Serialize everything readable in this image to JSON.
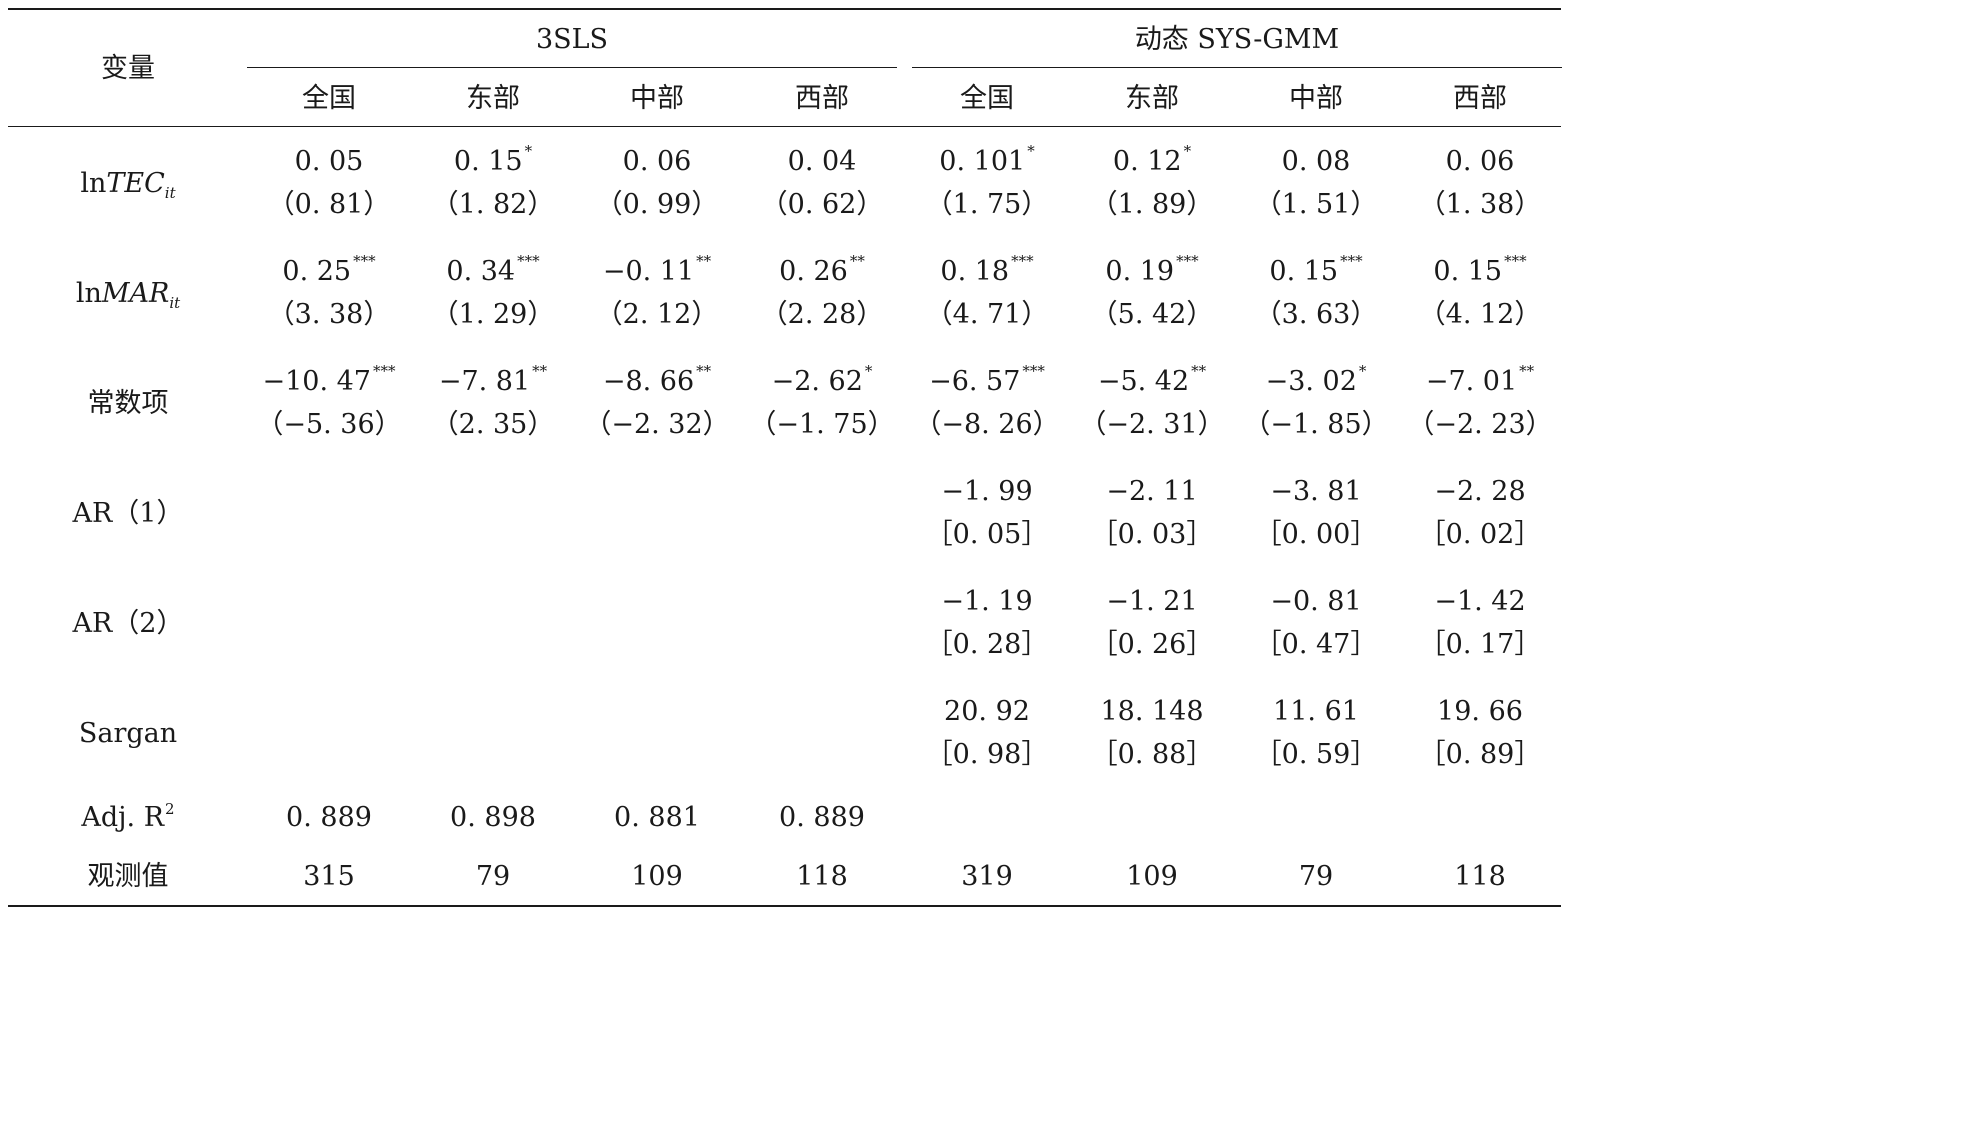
{
  "header": {
    "var_label": "变量",
    "groups": [
      {
        "label": "3SLS",
        "columns": [
          "全国",
          "东部",
          "中部",
          "西部"
        ]
      },
      {
        "label": "动态 SYS-GMM",
        "columns": [
          "全国",
          "东部",
          "中部",
          "西部"
        ]
      }
    ]
  },
  "rows": [
    {
      "label_prefix": "ln",
      "label_var": "TEC",
      "label_sub": "it",
      "top": [
        {
          "v": "0. 05",
          "s": ""
        },
        {
          "v": "0. 15",
          "s": "*"
        },
        {
          "v": "0. 06",
          "s": ""
        },
        {
          "v": "0. 04",
          "s": ""
        },
        {
          "v": "0. 101",
          "s": "*"
        },
        {
          "v": "0. 12",
          "s": "*"
        },
        {
          "v": "0. 08",
          "s": ""
        },
        {
          "v": "0. 06",
          "s": ""
        }
      ],
      "bottom": [
        "（0. 81）",
        "（1. 82）",
        "（0. 99）",
        "（0. 62）",
        "（1. 75）",
        "（1. 89）",
        "（1. 51）",
        "（1. 38）"
      ]
    },
    {
      "label_prefix": "ln",
      "label_var": "MAR",
      "label_sub": "it",
      "top": [
        {
          "v": "0. 25",
          "s": "***"
        },
        {
          "v": "0. 34",
          "s": "***"
        },
        {
          "v": "−0. 11",
          "s": "**"
        },
        {
          "v": "0. 26",
          "s": "**"
        },
        {
          "v": "0. 18",
          "s": "***"
        },
        {
          "v": "0. 19",
          "s": "***"
        },
        {
          "v": "0. 15",
          "s": "***"
        },
        {
          "v": "0. 15",
          "s": "***"
        }
      ],
      "bottom": [
        "（3. 38）",
        "（1. 29）",
        "（2. 12）",
        "（2. 28）",
        "（4. 71）",
        "（5. 42）",
        "（3. 63）",
        "（4. 12）"
      ]
    },
    {
      "label": "常数项",
      "top": [
        {
          "v": "−10. 47",
          "s": "***"
        },
        {
          "v": "−7. 81",
          "s": "**"
        },
        {
          "v": "−8. 66",
          "s": "**"
        },
        {
          "v": "−2. 62",
          "s": "*"
        },
        {
          "v": "−6. 57",
          "s": "***"
        },
        {
          "v": "−5. 42",
          "s": "**"
        },
        {
          "v": "−3. 02",
          "s": "*"
        },
        {
          "v": "−7. 01",
          "s": "**"
        }
      ],
      "bottom": [
        "（−5. 36）",
        "（2. 35）",
        "（−2. 32）",
        "（−1. 75）",
        "（−8. 26）",
        "（−2. 31）",
        "（−1. 85）",
        "（−2. 23）"
      ]
    },
    {
      "label": "AR（1）",
      "top": [
        {
          "v": "",
          "s": ""
        },
        {
          "v": "",
          "s": ""
        },
        {
          "v": "",
          "s": ""
        },
        {
          "v": "",
          "s": ""
        },
        {
          "v": "−1. 99",
          "s": ""
        },
        {
          "v": "−2. 11",
          "s": ""
        },
        {
          "v": "−3. 81",
          "s": ""
        },
        {
          "v": "−2. 28",
          "s": ""
        }
      ],
      "bottom": [
        "",
        "",
        "",
        "",
        "［0. 05］",
        "［0. 03］",
        "［0. 00］",
        "［0. 02］"
      ]
    },
    {
      "label": "AR（2）",
      "top": [
        {
          "v": "",
          "s": ""
        },
        {
          "v": "",
          "s": ""
        },
        {
          "v": "",
          "s": ""
        },
        {
          "v": "",
          "s": ""
        },
        {
          "v": "−1. 19",
          "s": ""
        },
        {
          "v": "−1. 21",
          "s": ""
        },
        {
          "v": "−0. 81",
          "s": ""
        },
        {
          "v": "−1. 42",
          "s": ""
        }
      ],
      "bottom": [
        "",
        "",
        "",
        "",
        "［0. 28］",
        "［0. 26］",
        "［0. 47］",
        "［0. 17］"
      ]
    },
    {
      "label": "Sargan",
      "top": [
        {
          "v": "",
          "s": ""
        },
        {
          "v": "",
          "s": ""
        },
        {
          "v": "",
          "s": ""
        },
        {
          "v": "",
          "s": ""
        },
        {
          "v": "20. 92",
          "s": ""
        },
        {
          "v": "18. 148",
          "s": ""
        },
        {
          "v": "11. 61",
          "s": ""
        },
        {
          "v": "19. 66",
          "s": ""
        }
      ],
      "bottom": [
        "",
        "",
        "",
        "",
        "［0. 98］",
        "［0. 88］",
        "［0. 59］",
        "［0. 89］"
      ]
    }
  ],
  "adj_r2": {
    "label": "Adj. R",
    "label_sup": "2",
    "values": [
      "0. 889",
      "0. 898",
      "0. 881",
      "0. 889",
      "",
      "",
      "",
      ""
    ]
  },
  "obs": {
    "label": "观测值",
    "values": [
      "315",
      "79",
      "109",
      "118",
      "319",
      "109",
      "79",
      "118"
    ]
  }
}
